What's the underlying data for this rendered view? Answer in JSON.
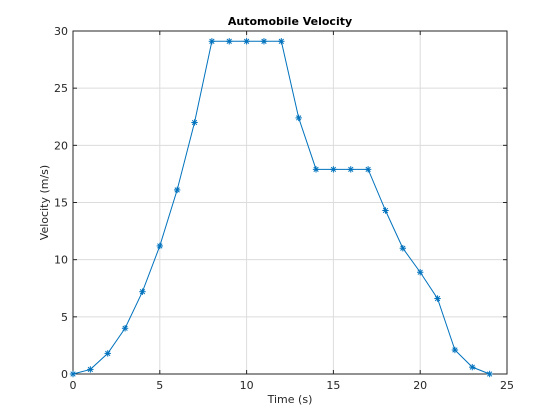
{
  "colors": {
    "background": "#ffffff",
    "axes_face": "#ffffff",
    "axis_line": "#262626",
    "grid": "#dcdcdc",
    "series": "#0072bd"
  },
  "chart_data": {
    "type": "line",
    "title": "Automobile Velocity",
    "xlabel": "Time (s)",
    "ylabel": "Velocity (m/s)",
    "xlim": [
      0,
      25
    ],
    "ylim": [
      0,
      30
    ],
    "x_ticks": [
      0,
      5,
      10,
      15,
      20,
      25
    ],
    "y_ticks": [
      0,
      5,
      10,
      15,
      20,
      25,
      30
    ],
    "x_tick_labels": [
      "0",
      "5",
      "10",
      "15",
      "20",
      "25"
    ],
    "y_tick_labels": [
      "0",
      "5",
      "10",
      "15",
      "20",
      "25",
      "30"
    ],
    "grid": true,
    "legend": "none",
    "marker": "asterisk",
    "series": [
      {
        "x": [
          0,
          1,
          2,
          3,
          4,
          5,
          6,
          7,
          8,
          9,
          10,
          11,
          12,
          13,
          14,
          15,
          16,
          17,
          18,
          19,
          20,
          21,
          22,
          23,
          24
        ],
        "values": [
          0,
          0.4,
          1.8,
          4.0,
          7.2,
          11.2,
          16.1,
          22.0,
          29.1,
          29.1,
          29.1,
          29.1,
          29.1,
          22.4,
          17.9,
          17.9,
          17.9,
          17.9,
          14.3,
          11.0,
          8.9,
          6.6,
          2.1,
          0.6,
          0.0
        ]
      }
    ]
  }
}
